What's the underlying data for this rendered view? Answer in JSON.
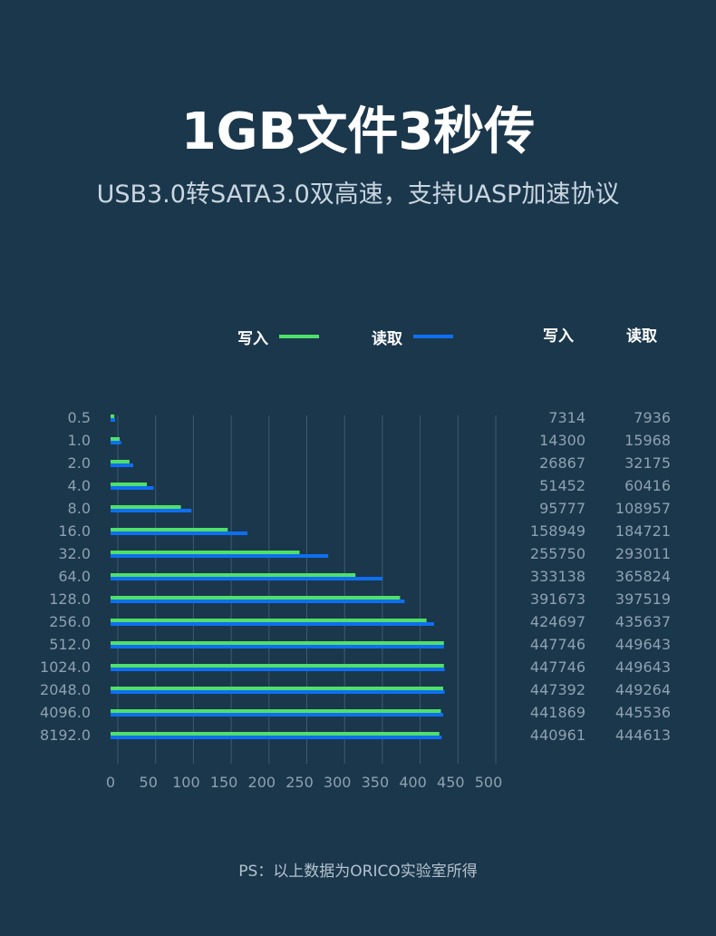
{
  "header": {
    "title": "1GB文件3秒传",
    "subtitle": "USB3.0转SATA3.0双高速，支持UASP加速协议"
  },
  "legend": {
    "write_label": "写入",
    "read_label": "读取"
  },
  "table_header": {
    "write": "写入",
    "read": "读取"
  },
  "colors": {
    "background": "#1b374c",
    "write": "#4fe06a",
    "read": "#0e6ff0",
    "grid": "#3e5a6f",
    "label": "#8ea1b0"
  },
  "chart_data": {
    "type": "bar",
    "orientation": "horizontal",
    "categories": [
      "0.5",
      "1.0",
      "2.0",
      "4.0",
      "8.0",
      "16.0",
      "32.0",
      "64.0",
      "128.0",
      "256.0",
      "512.0",
      "1024.0",
      "2048.0",
      "4096.0",
      "8192.0"
    ],
    "series": [
      {
        "name": "写入",
        "values": [
          5,
          12,
          25,
          48,
          93,
          155,
          250,
          324,
          383,
          418,
          441,
          441,
          440,
          437,
          435
        ]
      },
      {
        "name": "读取",
        "values": [
          6,
          14,
          30,
          57,
          107,
          181,
          288,
          360,
          389,
          428,
          441,
          442,
          442,
          440,
          438
        ]
      }
    ],
    "xlim": [
      0,
      500
    ],
    "xticks": [
      "0",
      "50",
      "100",
      "150",
      "200",
      "250",
      "300",
      "350",
      "400",
      "450",
      "500"
    ],
    "grid": true,
    "table": {
      "write": [
        "7314",
        "14300",
        "26867",
        "51452",
        "95777",
        "158949",
        "255750",
        "333138",
        "391673",
        "424697",
        "447746",
        "447746",
        "447392",
        "441869",
        "440961"
      ],
      "read": [
        "7936",
        "15968",
        "32175",
        "60416",
        "108957",
        "184721",
        "293011",
        "365824",
        "397519",
        "435637",
        "449643",
        "449643",
        "449264",
        "445536",
        "444613"
      ]
    }
  },
  "footnote": "PS：以上数据为ORICO实验室所得"
}
